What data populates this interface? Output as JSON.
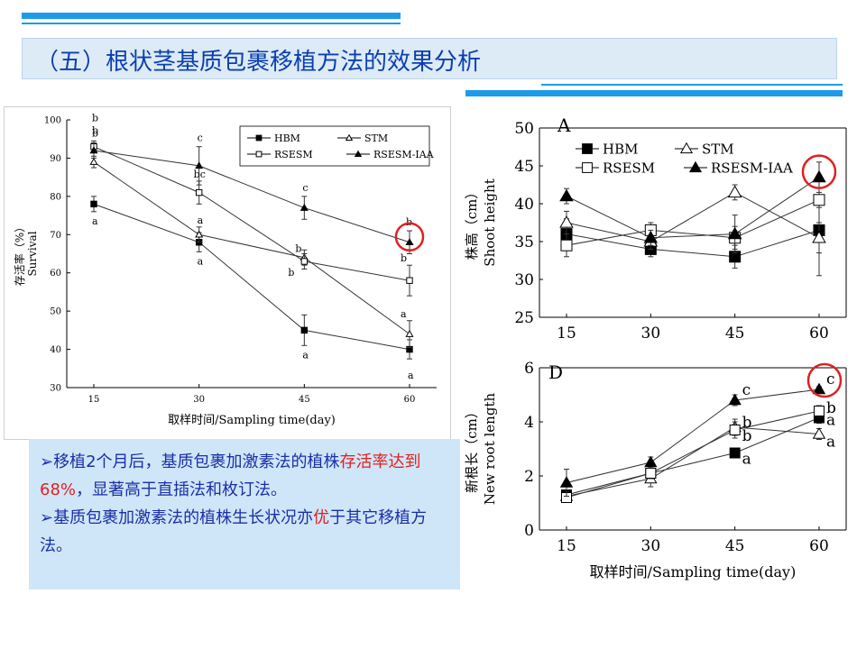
{
  "slide": {
    "title": "（五）根状茎基质包裹移植方法的效果分析",
    "colors": {
      "accent": "#1E9BE8",
      "title_text": "#0B3FB0",
      "title_bg": "#DDEBF7",
      "text_box_bg": "#CFE6F8",
      "body_text": "#1A2FA8",
      "highlight": "#E02020",
      "marker_circle": "#E02020"
    }
  },
  "text_box": {
    "bullet1_part1": "移植2个月后，基质包裹加激素法的植株",
    "bullet1_red": "存活率达到68%",
    "bullet1_part2": "，显著高于直插法和枚订法。",
    "bullet2_part1": "基质包裹加激素法的植株生长状况亦",
    "bullet2_red": "优",
    "bullet2_part2": "于其它移植方法。",
    "bullet_symbol": "➢"
  },
  "chart_data": [
    {
      "type": "line",
      "name": "survival",
      "ylabel": "存活率（%） Survival",
      "xlabel": "取样时间/Sampling time(day)",
      "x": [
        15,
        30,
        45,
        60
      ],
      "xticks": [
        "15",
        "30",
        "45",
        "60"
      ],
      "ylim": [
        30,
        100
      ],
      "yticks": [
        "30",
        "40",
        "50",
        "60",
        "70",
        "80",
        "90",
        "100"
      ],
      "legend_position": "top-right",
      "series": [
        {
          "name": "HBM",
          "marker": "filled-square",
          "values": [
            78,
            68,
            45,
            40
          ],
          "err": [
            2,
            2.5,
            4,
            2.5
          ],
          "letters": [
            "a",
            "a",
            "a",
            "a"
          ]
        },
        {
          "name": "STM",
          "marker": "open-triangle",
          "values": [
            89,
            70,
            64,
            44
          ],
          "err": [
            1.5,
            2,
            2,
            3.5
          ],
          "letters": [
            "b",
            "a",
            "b",
            "a"
          ]
        },
        {
          "name": "RSESM",
          "marker": "open-square",
          "values": [
            93,
            81,
            63,
            58
          ],
          "err": [
            1.5,
            3,
            2,
            4
          ],
          "letters": [
            "b",
            "bc",
            "b",
            "b"
          ]
        },
        {
          "name": "RSESM-IAA",
          "marker": "filled-triangle",
          "values": [
            92,
            88,
            77,
            68
          ],
          "err": [
            2,
            5,
            3,
            3
          ],
          "letters": [
            "b",
            "c",
            "c",
            "b"
          ]
        }
      ],
      "highlight_circle_x": 60
    },
    {
      "type": "line",
      "name": "shoot_height",
      "panel_label": "A",
      "ylabel": "株高（cm） Shoot height",
      "x": [
        15,
        30,
        45,
        60
      ],
      "xticks": [
        "15",
        "30",
        "45",
        "60"
      ],
      "ylim": [
        25,
        50
      ],
      "yticks": [
        "25",
        "30",
        "35",
        "40",
        "45",
        "50"
      ],
      "legend_position": "top",
      "series": [
        {
          "name": "HBM",
          "marker": "filled-square",
          "values": [
            36,
            34,
            33,
            36.5
          ],
          "err": [
            2,
            1,
            1.5,
            3
          ]
        },
        {
          "name": "STM",
          "marker": "open-triangle",
          "values": [
            37.5,
            35,
            41.5,
            35.5
          ],
          "err": [
            1.5,
            1,
            1,
            5
          ]
        },
        {
          "name": "RSESM",
          "marker": "open-square",
          "values": [
            34.5,
            36.5,
            35.5,
            40.5
          ],
          "err": [
            1.5,
            1,
            1.5,
            3
          ]
        },
        {
          "name": "RSESM-IAA",
          "marker": "filled-triangle",
          "values": [
            41,
            35.5,
            36,
            43.5
          ],
          "err": [
            1,
            1,
            2.5,
            2
          ]
        }
      ],
      "highlight_circle_x": 60
    },
    {
      "type": "line",
      "name": "new_root_length",
      "panel_label": "D",
      "ylabel": "新根长（cm） New root length",
      "xlabel": "取样时间/Sampling time(day)",
      "x": [
        15,
        30,
        45,
        60
      ],
      "xticks": [
        "15",
        "30",
        "45",
        "60"
      ],
      "ylim": [
        0,
        6
      ],
      "yticks": [
        "0",
        "2",
        "4",
        "6"
      ],
      "series": [
        {
          "name": "HBM",
          "marker": "filled-square",
          "values": [
            1.3,
            2.1,
            2.85,
            4.15
          ],
          "err": [
            0.15,
            0.2,
            0.15,
            0.2
          ],
          "letters": [
            "",
            "",
            "a",
            "a"
          ]
        },
        {
          "name": "STM",
          "marker": "open-triangle",
          "values": [
            1.25,
            1.9,
            3.8,
            3.55
          ],
          "err": [
            0.15,
            0.3,
            0.3,
            0.2
          ],
          "letters": [
            "",
            "",
            "b",
            "a"
          ]
        },
        {
          "name": "RSESM",
          "marker": "open-square",
          "values": [
            1.2,
            2.1,
            3.7,
            4.4
          ],
          "err": [
            0.15,
            0.2,
            0.3,
            0.2
          ],
          "letters": [
            "",
            "",
            "b",
            "b"
          ]
        },
        {
          "name": "RSESM-IAA",
          "marker": "filled-triangle",
          "values": [
            1.75,
            2.5,
            4.8,
            5.2
          ],
          "err": [
            0.5,
            0.2,
            0.2,
            0.1
          ],
          "letters": [
            "",
            "",
            "c",
            "c"
          ]
        }
      ],
      "highlight_circle_x": 60
    }
  ]
}
